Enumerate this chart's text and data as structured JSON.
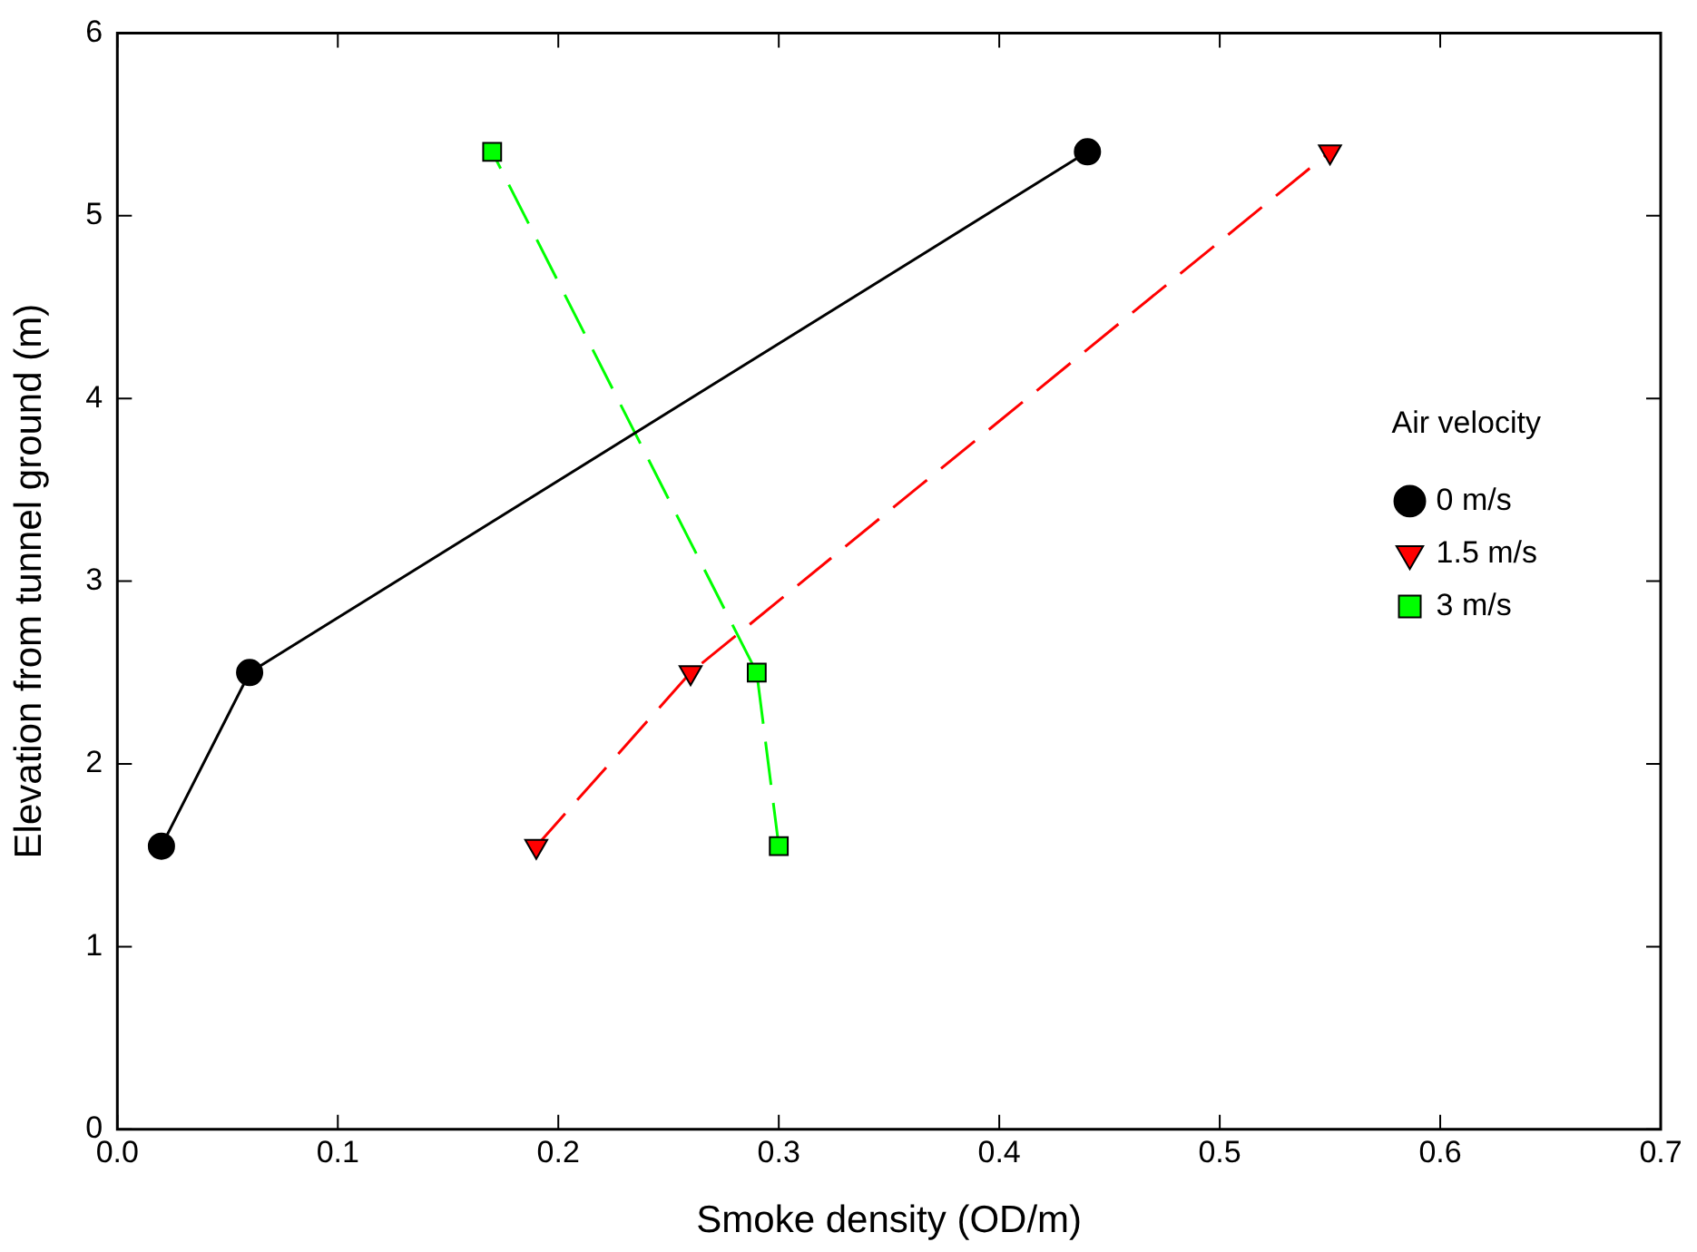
{
  "chart_data": {
    "type": "line",
    "xlabel": "Smoke density (OD/m)",
    "ylabel": "Elevation from tunnel ground (m)",
    "legend_title": "Air velocity",
    "legend": "right",
    "grid": false,
    "xlim": [
      0,
      0.7
    ],
    "xticks": [
      {
        "value": 0,
        "label": "0.0"
      },
      0.1,
      0.2,
      0.3,
      0.4,
      0.5,
      0.6,
      0.7
    ],
    "ylim": [
      0,
      6
    ],
    "yticks": [
      0,
      1,
      2,
      3,
      4,
      5,
      6
    ],
    "series": [
      {
        "name": "0 m/s",
        "color": "#000000",
        "marker": "circle",
        "line_style": "solid",
        "x": [
          0.02,
          0.06,
          0.44
        ],
        "values": [
          1.55,
          2.5,
          5.35
        ]
      },
      {
        "name": "1.5 m/s",
        "color": "#ff0000",
        "marker": "triangle",
        "line_style": "dashed",
        "x": [
          0.19,
          0.26,
          0.55
        ],
        "values": [
          1.55,
          2.5,
          5.35
        ]
      },
      {
        "name": "3 m/s",
        "color": "#00ff00",
        "marker": "square",
        "line_style": "dashed",
        "x": [
          0.3,
          0.29,
          0.17
        ],
        "values": [
          1.55,
          2.5,
          5.35
        ]
      }
    ]
  }
}
